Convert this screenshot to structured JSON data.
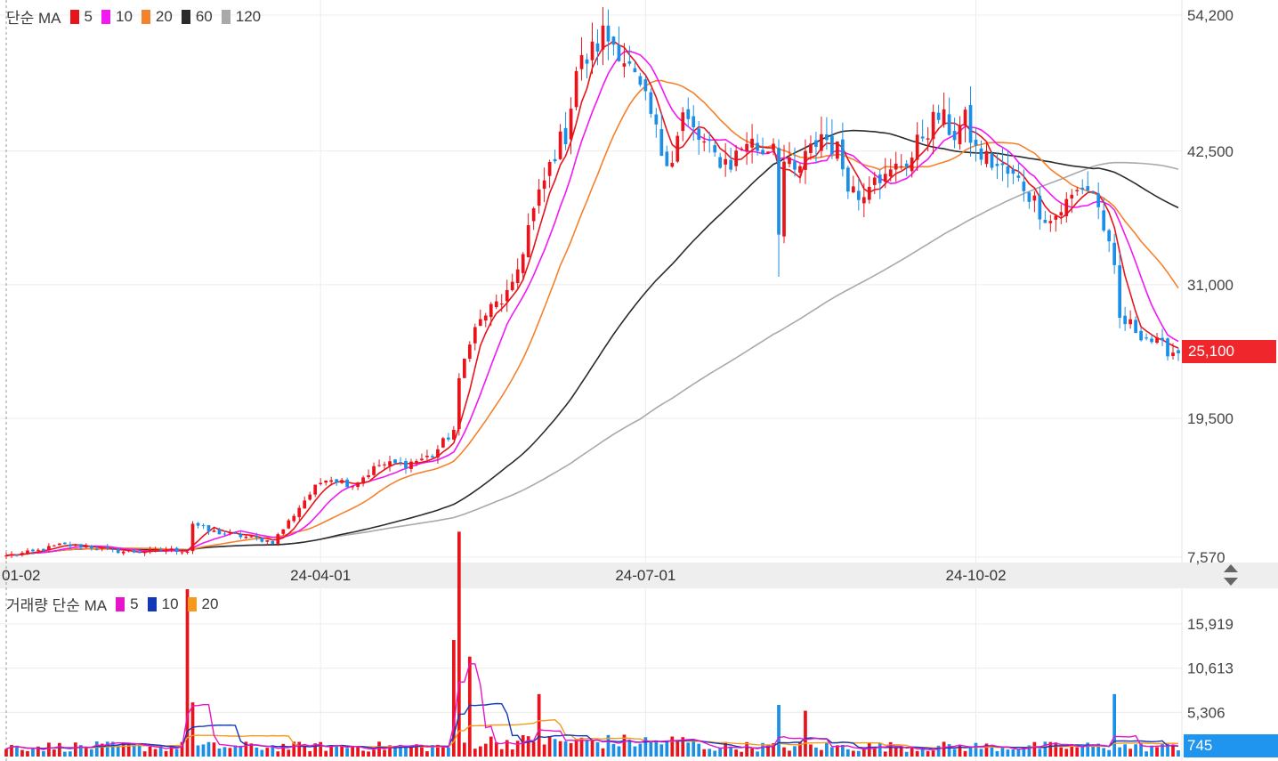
{
  "price_panel": {
    "legend": {
      "title": "단순 MA",
      "items": [
        {
          "label": "5",
          "color": "#e8141c"
        },
        {
          "label": "10",
          "color": "#f218f2"
        },
        {
          "label": "20",
          "color": "#f5812c"
        },
        {
          "label": "60",
          "color": "#2b2b2b"
        },
        {
          "label": "120",
          "color": "#a9a9a9"
        }
      ]
    },
    "current_price_label": "25,100"
  },
  "volume_panel": {
    "legend": {
      "title": "거래량 단순 MA",
      "items": [
        {
          "label": "5",
          "color": "#e616c8"
        },
        {
          "label": "10",
          "color": "#1238b8"
        },
        {
          "label": "20",
          "color": "#f59a1a"
        }
      ]
    },
    "current_volume_label": "745"
  },
  "icons": {
    "resize": "resize-arrows-icon"
  },
  "chart_data": {
    "type": "candlestick",
    "price_axis": {
      "ticks": [
        7570,
        19500,
        31000,
        42500,
        54200
      ],
      "tick_labels": [
        "7,570",
        "19,500",
        "31,000",
        "42,500",
        "54,200"
      ],
      "range": [
        7100,
        55500
      ]
    },
    "time_axis": {
      "tick_labels": [
        "01-02",
        "24-04-01",
        "24-07-01",
        "24-10-02"
      ],
      "tick_index": [
        0,
        59,
        120,
        182
      ]
    },
    "volume_axis": {
      "ticks": [
        5306,
        10613,
        15919
      ],
      "tick_labels": [
        "5,306",
        "10,613",
        "15,919"
      ],
      "range": [
        0,
        20200
      ]
    },
    "current_price": 25100,
    "current_volume": 745,
    "colors": {
      "up": "#e8141c",
      "down": "#1b8fe6",
      "grid": "#ececec",
      "ma5": "#e8141c",
      "ma10": "#f218f2",
      "ma20": "#f5812c",
      "ma60": "#2b2b2b",
      "ma120": "#a9a9a9",
      "vma5": "#e616c8",
      "vma10": "#1238b8",
      "vma20": "#f59a1a"
    },
    "close_anchors": [
      [
        0,
        7700
      ],
      [
        5,
        8000
      ],
      [
        10,
        8600
      ],
      [
        15,
        8500
      ],
      [
        20,
        8100
      ],
      [
        25,
        8000
      ],
      [
        30,
        8200
      ],
      [
        34,
        8100
      ],
      [
        35,
        10500
      ],
      [
        38,
        9800
      ],
      [
        45,
        9300
      ],
      [
        50,
        8900
      ],
      [
        52,
        10000
      ],
      [
        56,
        12500
      ],
      [
        60,
        14500
      ],
      [
        65,
        13800
      ],
      [
        70,
        15500
      ],
      [
        75,
        15600
      ],
      [
        80,
        16300
      ],
      [
        84,
        18500
      ],
      [
        85,
        22500
      ],
      [
        87,
        26500
      ],
      [
        90,
        28500
      ],
      [
        95,
        30500
      ],
      [
        98,
        36000
      ],
      [
        100,
        38500
      ],
      [
        103,
        42500
      ],
      [
        105,
        44000
      ],
      [
        107,
        49500
      ],
      [
        110,
        51000
      ],
      [
        112,
        52500
      ],
      [
        115,
        51500
      ],
      [
        117,
        49500
      ],
      [
        119,
        47500
      ],
      [
        121,
        45500
      ],
      [
        123,
        42500
      ],
      [
        125,
        42000
      ],
      [
        127,
        45500
      ],
      [
        130,
        43500
      ],
      [
        133,
        42000
      ],
      [
        136,
        41500
      ],
      [
        139,
        43500
      ],
      [
        142,
        42500
      ],
      [
        144,
        43500
      ],
      [
        145,
        36000
      ],
      [
        146,
        41500
      ],
      [
        148,
        40500
      ],
      [
        151,
        42500
      ],
      [
        153,
        44000
      ],
      [
        156,
        42500
      ],
      [
        158,
        40000
      ],
      [
        160,
        38500
      ],
      [
        163,
        41000
      ],
      [
        165,
        40000
      ],
      [
        168,
        41500
      ],
      [
        170,
        42000
      ],
      [
        172,
        44000
      ],
      [
        175,
        45500
      ],
      [
        178,
        44000
      ],
      [
        180,
        45000
      ],
      [
        182,
        42500
      ],
      [
        185,
        41500
      ],
      [
        188,
        40500
      ],
      [
        191,
        39500
      ],
      [
        194,
        37500
      ],
      [
        196,
        36500
      ],
      [
        198,
        37500
      ],
      [
        200,
        38500
      ],
      [
        202,
        39500
      ],
      [
        204,
        39000
      ],
      [
        206,
        36000
      ],
      [
        208,
        32000
      ],
      [
        209,
        28000
      ],
      [
        211,
        27500
      ],
      [
        214,
        26500
      ],
      [
        217,
        25600
      ],
      [
        220,
        25100
      ]
    ],
    "volume_spikes": [
      [
        34,
        20100
      ],
      [
        35,
        6500
      ],
      [
        84,
        14000
      ],
      [
        85,
        18000
      ],
      [
        87,
        8000
      ],
      [
        100,
        5000
      ],
      [
        145,
        6200
      ],
      [
        150,
        5500
      ],
      [
        208,
        7500
      ]
    ],
    "volume_base": 1400
  }
}
